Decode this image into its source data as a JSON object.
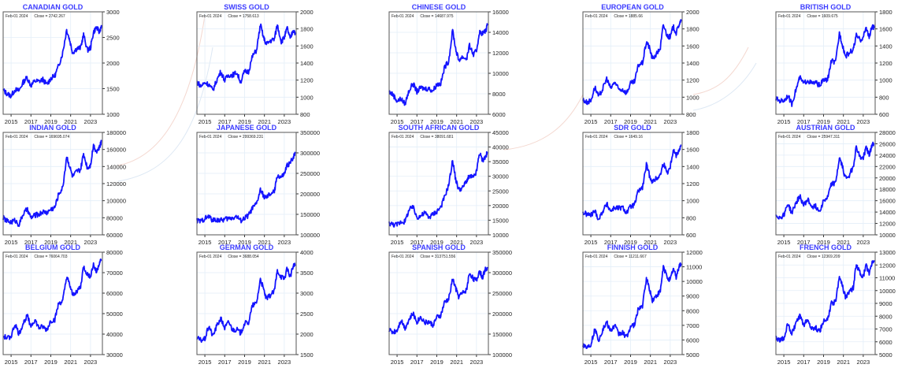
{
  "page": {
    "date_label": "Feb-01  2024",
    "close_prefix": "Close = "
  },
  "chart_data": [
    {
      "type": "line",
      "title": "CANADIAN GOLD",
      "close": "2742.267",
      "x_ticks": [
        "2015",
        "2017",
        "2019",
        "2021",
        "2023"
      ],
      "ylim": [
        1000,
        3000
      ],
      "y_ticks": [
        "1000",
        "1500",
        "2000",
        "2500",
        "3000"
      ],
      "x": [
        2014.2,
        2014.6,
        2015.0,
        2015.4,
        2015.8,
        2016.2,
        2016.6,
        2017.0,
        2017.4,
        2017.8,
        2018.2,
        2018.6,
        2019.0,
        2019.4,
        2019.8,
        2020.2,
        2020.6,
        2020.9,
        2021.2,
        2021.6,
        2022.0,
        2022.3,
        2022.7,
        2023.0,
        2023.3,
        2023.6,
        2023.9,
        2024.1
      ],
      "values": [
        1470,
        1400,
        1360,
        1480,
        1460,
        1620,
        1720,
        1560,
        1650,
        1640,
        1680,
        1580,
        1700,
        1750,
        1950,
        2200,
        2650,
        2450,
        2200,
        2280,
        2300,
        2550,
        2250,
        2300,
        2600,
        2700,
        2600,
        2742
      ]
    },
    {
      "type": "line",
      "title": "SWISS GOLD",
      "close": "1758.613",
      "x_ticks": [
        "2015",
        "2017",
        "2019",
        "2021",
        "2023"
      ],
      "ylim": [
        800,
        2000
      ],
      "y_ticks": [
        "800",
        "1000",
        "1200",
        "1400",
        "1600",
        "1800",
        "2000"
      ],
      "x": [
        2014.2,
        2014.6,
        2015.0,
        2015.4,
        2015.8,
        2016.2,
        2016.6,
        2017.0,
        2017.4,
        2017.8,
        2018.2,
        2018.6,
        2019.0,
        2019.4,
        2019.8,
        2020.2,
        2020.6,
        2020.9,
        2021.2,
        2021.6,
        2022.0,
        2022.3,
        2022.7,
        2023.0,
        2023.3,
        2023.6,
        2023.9,
        2024.1
      ],
      "values": [
        1180,
        1130,
        1170,
        1150,
        1080,
        1200,
        1300,
        1200,
        1260,
        1260,
        1290,
        1180,
        1300,
        1300,
        1480,
        1550,
        1850,
        1700,
        1620,
        1660,
        1680,
        1850,
        1650,
        1700,
        1810,
        1680,
        1790,
        1758
      ]
    },
    {
      "type": "line",
      "title": "CHINESE GOLD",
      "close": "14687.975",
      "x_ticks": [
        "2015",
        "2017",
        "2019",
        "2021",
        "2023"
      ],
      "ylim": [
        6000,
        16000
      ],
      "y_ticks": [
        "6000",
        "8000",
        "10000",
        "12000",
        "14000",
        "16000"
      ],
      "x": [
        2014.2,
        2014.6,
        2015.0,
        2015.4,
        2015.8,
        2016.2,
        2016.6,
        2017.0,
        2017.4,
        2017.8,
        2018.2,
        2018.6,
        2019.0,
        2019.4,
        2019.8,
        2020.2,
        2020.6,
        2020.9,
        2021.2,
        2021.6,
        2022.0,
        2022.3,
        2022.7,
        2023.0,
        2023.3,
        2023.6,
        2023.9,
        2024.1
      ],
      "values": [
        8200,
        7900,
        7300,
        7500,
        7000,
        8300,
        9000,
        8200,
        8600,
        8500,
        8500,
        8300,
        8900,
        9000,
        10600,
        11200,
        14200,
        12400,
        11300,
        11600,
        11400,
        12700,
        11800,
        12200,
        14000,
        13900,
        14100,
        14688
      ]
    },
    {
      "type": "line",
      "title": "EUROPEAN GOLD",
      "close": "1885.66",
      "x_ticks": [
        "2015",
        "2017",
        "2019",
        "2021",
        "2023"
      ],
      "ylim": [
        800,
        2000
      ],
      "y_ticks": [
        "800",
        "1000",
        "1200",
        "1400",
        "1600",
        "1800",
        "2000"
      ],
      "x": [
        2014.2,
        2014.6,
        2015.0,
        2015.4,
        2015.8,
        2016.2,
        2016.6,
        2017.0,
        2017.4,
        2017.8,
        2018.2,
        2018.6,
        2019.0,
        2019.4,
        2019.8,
        2020.2,
        2020.6,
        2020.9,
        2021.2,
        2021.6,
        2022.0,
        2022.3,
        2022.7,
        2023.0,
        2023.3,
        2023.6,
        2023.9,
        2024.1
      ],
      "values": [
        970,
        940,
        960,
        1120,
        1000,
        1100,
        1220,
        1100,
        1180,
        1090,
        1090,
        1050,
        1160,
        1180,
        1380,
        1400,
        1650,
        1580,
        1450,
        1500,
        1580,
        1850,
        1720,
        1700,
        1830,
        1750,
        1860,
        1886
      ]
    },
    {
      "type": "line",
      "title": "BRITISH GOLD",
      "close": "1609.675",
      "x_ticks": [
        "2015",
        "2017",
        "2019",
        "2021",
        "2023"
      ],
      "ylim": [
        600,
        1800
      ],
      "y_ticks": [
        "600",
        "800",
        "1000",
        "1200",
        "1400",
        "1600",
        "1800"
      ],
      "x": [
        2014.2,
        2014.6,
        2015.0,
        2015.4,
        2015.8,
        2016.2,
        2016.6,
        2017.0,
        2017.4,
        2017.8,
        2018.2,
        2018.6,
        2019.0,
        2019.4,
        2019.8,
        2020.2,
        2020.6,
        2020.9,
        2021.2,
        2021.6,
        2022.0,
        2022.3,
        2022.7,
        2023.0,
        2023.3,
        2023.6,
        2023.9,
        2024.1
      ],
      "values": [
        780,
        760,
        760,
        820,
        720,
        880,
        1030,
        960,
        1000,
        960,
        970,
        940,
        1000,
        1000,
        1230,
        1200,
        1550,
        1420,
        1280,
        1320,
        1360,
        1520,
        1470,
        1500,
        1620,
        1500,
        1630,
        1610
      ]
    },
    {
      "type": "line",
      "title": "INDIAN GOLD",
      "close": "169695.074",
      "x_ticks": [
        "2015",
        "2017",
        "2019",
        "2021",
        "2023"
      ],
      "ylim": [
        60000,
        180000
      ],
      "y_ticks": [
        "60000",
        "80000",
        "100000",
        "120000",
        "140000",
        "160000",
        "180000"
      ],
      "x": [
        2014.2,
        2014.6,
        2015.0,
        2015.4,
        2015.8,
        2016.2,
        2016.6,
        2017.0,
        2017.4,
        2017.8,
        2018.2,
        2018.6,
        2019.0,
        2019.4,
        2019.8,
        2020.2,
        2020.6,
        2020.9,
        2021.2,
        2021.6,
        2022.0,
        2022.3,
        2022.7,
        2023.0,
        2023.3,
        2023.6,
        2023.9,
        2024.1
      ],
      "values": [
        80000,
        76000,
        75000,
        77000,
        72000,
        84000,
        90000,
        80000,
        83000,
        84000,
        87000,
        86000,
        90000,
        92000,
        108000,
        115000,
        152000,
        140000,
        128000,
        134000,
        136000,
        155000,
        138000,
        142000,
        165000,
        158000,
        162000,
        169695
      ]
    },
    {
      "type": "line",
      "title": "JAPANESE GOLD",
      "close": "299369.231",
      "x_ticks": [
        "2015",
        "2017",
        "2019",
        "2021",
        "2023"
      ],
      "ylim": [
        100000,
        350000
      ],
      "y_ticks": [
        "100000",
        "150000",
        "200000",
        "250000",
        "300000",
        "350000"
      ],
      "x": [
        2014.2,
        2014.6,
        2015.0,
        2015.4,
        2015.8,
        2016.2,
        2016.6,
        2017.0,
        2017.4,
        2017.8,
        2018.2,
        2018.6,
        2019.0,
        2019.4,
        2019.8,
        2020.2,
        2020.6,
        2020.9,
        2021.2,
        2021.6,
        2022.0,
        2022.3,
        2022.7,
        2023.0,
        2023.3,
        2023.6,
        2023.9,
        2024.1
      ],
      "values": [
        135000,
        133000,
        140000,
        145000,
        135000,
        137000,
        135000,
        138000,
        140000,
        142000,
        145000,
        135000,
        140000,
        148000,
        165000,
        175000,
        210000,
        195000,
        190000,
        200000,
        205000,
        245000,
        240000,
        248000,
        270000,
        275000,
        290000,
        299369
      ]
    },
    {
      "type": "line",
      "title": "SOUTH AFRICAN GOLD",
      "close": "38091.681",
      "x_ticks": [
        "2015",
        "2017",
        "2019",
        "2021",
        "2023"
      ],
      "ylim": [
        10000,
        45000
      ],
      "y_ticks": [
        "10000",
        "15000",
        "20000",
        "25000",
        "30000",
        "35000",
        "40000",
        "45000"
      ],
      "x": [
        2014.2,
        2014.6,
        2015.0,
        2015.4,
        2015.8,
        2016.2,
        2016.6,
        2017.0,
        2017.4,
        2017.8,
        2018.2,
        2018.6,
        2019.0,
        2019.4,
        2019.8,
        2020.2,
        2020.6,
        2020.9,
        2021.2,
        2021.6,
        2022.0,
        2022.3,
        2022.7,
        2023.0,
        2023.3,
        2023.6,
        2023.9,
        2024.1
      ],
      "values": [
        14000,
        13500,
        13500,
        14500,
        14500,
        18500,
        19500,
        16000,
        16500,
        17500,
        16000,
        17000,
        18000,
        19500,
        23000,
        27000,
        35500,
        29000,
        25500,
        26000,
        28500,
        30000,
        29500,
        31500,
        38000,
        35500,
        36500,
        38092
      ]
    },
    {
      "type": "line",
      "title": "SDR GOLD",
      "close": "1649.16",
      "x_ticks": [
        "2015",
        "2017",
        "2019",
        "2021",
        "2023"
      ],
      "ylim": [
        600,
        1800
      ],
      "y_ticks": [
        "600",
        "800",
        "1000",
        "1200",
        "1400",
        "1600",
        "1800"
      ],
      "x": [
        2014.2,
        2014.6,
        2015.0,
        2015.4,
        2015.8,
        2016.2,
        2016.6,
        2017.0,
        2017.4,
        2017.8,
        2018.2,
        2018.6,
        2019.0,
        2019.4,
        2019.8,
        2020.2,
        2020.6,
        2020.9,
        2021.2,
        2021.6,
        2022.0,
        2022.3,
        2022.7,
        2023.0,
        2023.3,
        2023.6,
        2023.9,
        2024.1
      ],
      "values": [
        860,
        840,
        830,
        880,
        780,
        880,
        960,
        880,
        920,
        910,
        920,
        860,
        930,
        950,
        1120,
        1150,
        1420,
        1300,
        1220,
        1260,
        1300,
        1440,
        1330,
        1400,
        1600,
        1530,
        1600,
        1649
      ]
    },
    {
      "type": "line",
      "title": "AUSTRIAN GOLD",
      "close": "25947.311",
      "x_ticks": [
        "2015",
        "2017",
        "2019",
        "2021",
        "2023"
      ],
      "ylim": [
        10000,
        28000
      ],
      "y_ticks": [
        "10000",
        "12000",
        "14000",
        "16000",
        "18000",
        "20000",
        "22000",
        "24000",
        "26000",
        "28000"
      ],
      "x": [
        2014.2,
        2014.6,
        2015.0,
        2015.4,
        2015.8,
        2016.2,
        2016.6,
        2017.0,
        2017.4,
        2017.8,
        2018.2,
        2018.6,
        2019.0,
        2019.4,
        2019.8,
        2020.2,
        2020.6,
        2020.9,
        2021.2,
        2021.6,
        2022.0,
        2022.3,
        2022.7,
        2023.0,
        2023.3,
        2023.6,
        2023.9,
        2024.1
      ],
      "values": [
        13500,
        13000,
        13500,
        15500,
        13800,
        15500,
        16800,
        15200,
        16200,
        15000,
        15000,
        14200,
        16000,
        16500,
        19000,
        19000,
        23500,
        22000,
        20000,
        20500,
        22000,
        25500,
        23500,
        23500,
        25500,
        24000,
        25800,
        25947
      ]
    },
    {
      "type": "line",
      "title": "BELGIUM GOLD",
      "close": "76064.703",
      "x_ticks": [
        "2015",
        "2017",
        "2019",
        "2021",
        "2023"
      ],
      "ylim": [
        30000,
        80000
      ],
      "y_ticks": [
        "30000",
        "40000",
        "50000",
        "60000",
        "70000",
        "80000"
      ],
      "x": [
        2014.2,
        2014.6,
        2015.0,
        2015.4,
        2015.8,
        2016.2,
        2016.6,
        2017.0,
        2017.4,
        2017.8,
        2018.2,
        2018.6,
        2019.0,
        2019.4,
        2019.8,
        2020.2,
        2020.6,
        2020.9,
        2021.2,
        2021.6,
        2022.0,
        2022.3,
        2022.7,
        2023.0,
        2023.3,
        2023.6,
        2023.9,
        2024.1
      ],
      "values": [
        39000,
        38000,
        39000,
        45000,
        40000,
        45000,
        49000,
        44000,
        47000,
        43000,
        43500,
        42000,
        46500,
        47000,
        55000,
        56000,
        68000,
        64000,
        59000,
        61000,
        63000,
        73000,
        69000,
        68500,
        74000,
        70000,
        75000,
        76065
      ]
    },
    {
      "type": "line",
      "title": "GERMAN GOLD",
      "close": "3688.054",
      "x_ticks": [
        "2015",
        "2017",
        "2019",
        "2021",
        "2023"
      ],
      "ylim": [
        1500,
        4000
      ],
      "y_ticks": [
        "1500",
        "2000",
        "2500",
        "3000",
        "3500",
        "4000"
      ],
      "x": [
        2014.2,
        2014.6,
        2015.0,
        2015.4,
        2015.8,
        2016.2,
        2016.6,
        2017.0,
        2017.4,
        2017.8,
        2018.2,
        2018.6,
        2019.0,
        2019.4,
        2019.8,
        2020.2,
        2020.6,
        2020.9,
        2021.2,
        2021.6,
        2022.0,
        2022.3,
        2022.7,
        2023.0,
        2023.3,
        2023.6,
        2023.9,
        2024.1
      ],
      "values": [
        1900,
        1850,
        1880,
        2200,
        1950,
        2200,
        2380,
        2150,
        2300,
        2100,
        2120,
        2020,
        2260,
        2280,
        2700,
        2750,
        3350,
        3100,
        2850,
        2950,
        3050,
        3550,
        3400,
        3350,
        3600,
        3400,
        3650,
        3688
      ]
    },
    {
      "type": "line",
      "title": "SPANISH GOLD",
      "close": "313751.556",
      "x_ticks": [
        "2015",
        "2017",
        "2019",
        "2021",
        "2023"
      ],
      "ylim": [
        100000,
        350000
      ],
      "y_ticks": [
        "100000",
        "150000",
        "200000",
        "250000",
        "300000",
        "350000"
      ],
      "x": [
        2014.2,
        2014.6,
        2015.0,
        2015.4,
        2015.8,
        2016.2,
        2016.6,
        2017.0,
        2017.4,
        2017.8,
        2018.2,
        2018.6,
        2019.0,
        2019.4,
        2019.8,
        2020.2,
        2020.6,
        2020.9,
        2021.2,
        2021.6,
        2022.0,
        2022.3,
        2022.7,
        2023.0,
        2023.3,
        2023.6,
        2023.9,
        2024.1
      ],
      "values": [
        160000,
        155000,
        160000,
        185000,
        165000,
        185000,
        200000,
        180000,
        192000,
        178000,
        180000,
        172000,
        190000,
        195000,
        228000,
        235000,
        285000,
        262000,
        242000,
        250000,
        258000,
        300000,
        285000,
        280000,
        305000,
        288000,
        308000,
        313752
      ]
    },
    {
      "type": "line",
      "title": "FINNISH GOLD",
      "close": "11211.667",
      "x_ticks": [
        "2015",
        "2017",
        "2019",
        "2021",
        "2023"
      ],
      "ylim": [
        5000,
        12000
      ],
      "y_ticks": [
        "5000",
        "6000",
        "7000",
        "8000",
        "9000",
        "10000",
        "11000",
        "12000"
      ],
      "x": [
        2014.2,
        2014.6,
        2015.0,
        2015.4,
        2015.8,
        2016.2,
        2016.6,
        2017.0,
        2017.4,
        2017.8,
        2018.2,
        2018.6,
        2019.0,
        2019.4,
        2019.8,
        2020.2,
        2020.6,
        2020.9,
        2021.2,
        2021.6,
        2022.0,
        2022.3,
        2022.7,
        2023.0,
        2023.3,
        2023.6,
        2023.9,
        2024.1
      ],
      "values": [
        5700,
        5500,
        5700,
        6700,
        6000,
        6700,
        7200,
        6600,
        7000,
        6400,
        6500,
        6200,
        6900,
        7000,
        8200,
        8300,
        10200,
        9500,
        8700,
        9000,
        9300,
        11000,
        10300,
        10100,
        10900,
        10300,
        11100,
        11212
      ]
    },
    {
      "type": "line",
      "title": "FRENCH GOLD",
      "close": "12369.209",
      "x_ticks": [
        "2015",
        "2017",
        "2019",
        "2021",
        "2023"
      ],
      "ylim": [
        5000,
        13000
      ],
      "y_ticks": [
        "5000",
        "6000",
        "7000",
        "8000",
        "9000",
        "10000",
        "11000",
        "12000",
        "13000"
      ],
      "x": [
        2014.2,
        2014.6,
        2015.0,
        2015.4,
        2015.8,
        2016.2,
        2016.6,
        2017.0,
        2017.4,
        2017.8,
        2018.2,
        2018.6,
        2019.0,
        2019.4,
        2019.8,
        2020.2,
        2020.6,
        2020.9,
        2021.2,
        2021.6,
        2022.0,
        2022.3,
        2022.7,
        2023.0,
        2023.3,
        2023.6,
        2023.9,
        2024.1
      ],
      "values": [
        6300,
        6100,
        6300,
        7400,
        6600,
        7400,
        8000,
        7300,
        7700,
        7100,
        7100,
        6800,
        7600,
        7700,
        9000,
        9100,
        11200,
        10400,
        9500,
        9900,
        10200,
        12100,
        11300,
        11100,
        12000,
        11300,
        12200,
        12369
      ]
    }
  ]
}
